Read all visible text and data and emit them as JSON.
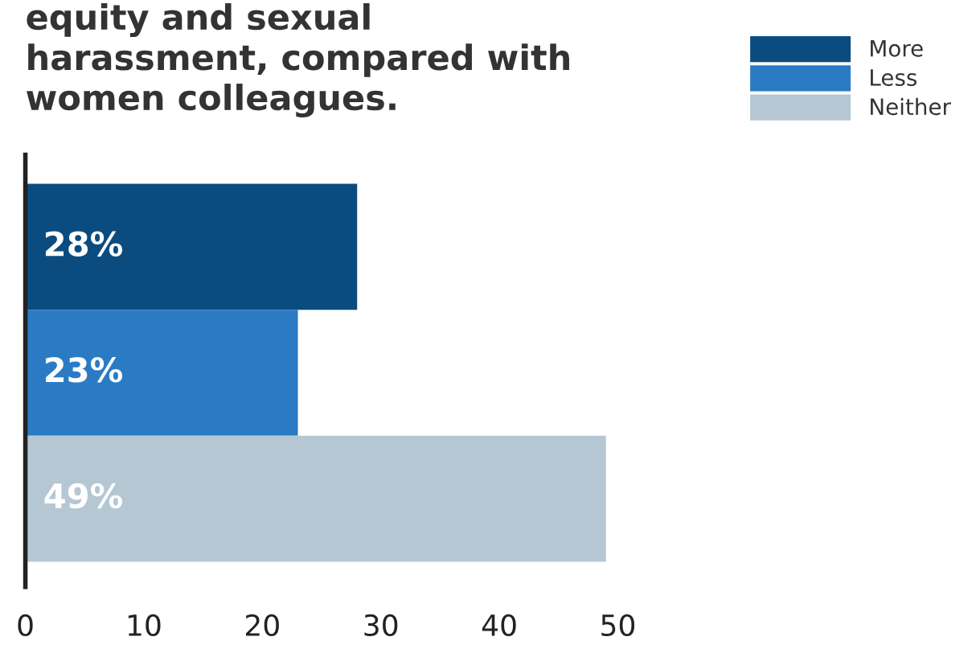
{
  "chart_data": {
    "type": "bar",
    "orientation": "horizontal",
    "title": "equity and sexual\nharassment, compared with\nwomen colleagues.",
    "categories": [
      null,
      null,
      null
    ],
    "series": [
      {
        "name": "More",
        "color": "#0b4c80",
        "values": [
          28,
          null,
          null
        ],
        "value_labels": [
          "28%",
          null,
          null
        ]
      },
      {
        "name": "Less",
        "color": "#2b7bc4",
        "values": [
          null,
          23,
          null
        ],
        "value_labels": [
          null,
          "23%",
          null
        ]
      },
      {
        "name": "Neither",
        "color": "#b4c7d3",
        "values": [
          null,
          null,
          49
        ],
        "value_labels": [
          null,
          null,
          "49%"
        ]
      }
    ],
    "xlim": [
      0,
      50
    ],
    "xticks": [
      0,
      10,
      20,
      30,
      40,
      50
    ],
    "grid": false,
    "legend": "top right"
  }
}
